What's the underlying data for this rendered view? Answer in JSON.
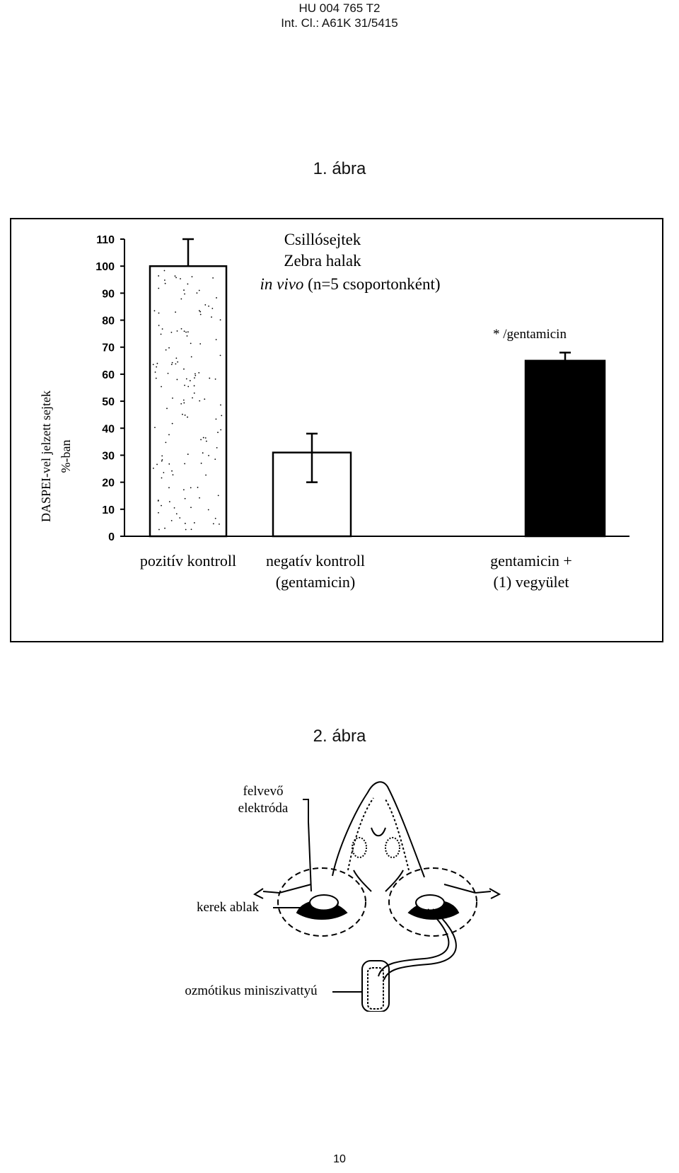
{
  "header": {
    "doc_number": "HU 004 765 T2",
    "classification": "Int. Cl.: A61K 31/5415"
  },
  "figure1": {
    "label": "1. ábra",
    "title_lines": [
      "Csillósejtek",
      "Zebra halak"
    ],
    "subtitle_italic": "in vivo",
    "subtitle_rest": " (n=5 csoportonként)",
    "annotation": "* /gentamicin",
    "ylabel_line1": "DASPEI-vel jelzett sejtek",
    "ylabel_line2": "%-ban"
  },
  "chart_data": {
    "type": "bar",
    "categories": [
      [
        "pozitív kontroll"
      ],
      [
        "negatív kontroll",
        "(gentamicin)"
      ],
      [
        "gentamicin +",
        "(1) vegyület"
      ]
    ],
    "values": [
      100,
      31,
      65
    ],
    "error_upper": [
      110,
      38,
      68
    ],
    "error_lower": [
      null,
      20,
      63
    ],
    "fill": [
      "#ffffff",
      "#ffffff",
      "#000000"
    ],
    "stippled": [
      true,
      false,
      false
    ],
    "ylim": [
      0,
      110
    ],
    "yticks": [
      "0",
      "10",
      "20",
      "30",
      "40",
      "50",
      "60",
      "70",
      "80",
      "90",
      "100",
      "110"
    ]
  },
  "figure2": {
    "label": "2. ábra",
    "labels": {
      "electrode_line1": "felvevő",
      "electrode_line2": "elektróda",
      "round_window": "kerek ablak",
      "pump": "ozmótikus miniszivattyú"
    }
  },
  "footer": {
    "page_number": "10"
  }
}
